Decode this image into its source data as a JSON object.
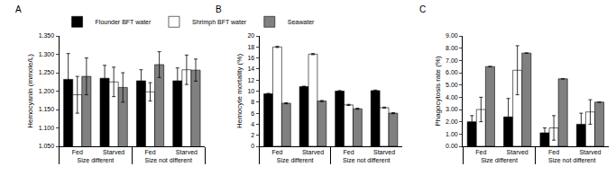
{
  "chart_data": [
    {
      "type": "bar",
      "title": "A",
      "y_label": "Hemocyanin (mmole/L)",
      "categories": [
        "Fed",
        "Starved",
        "Fed",
        "Starved"
      ],
      "category_groups": [
        "Size different",
        "Size different",
        "Size not different",
        "Size not different"
      ],
      "series": [
        {
          "name": "Flounder BFT water",
          "color": "#000000",
          "values": [
            1.232,
            1.235,
            1.228,
            1.228
          ],
          "errors": [
            0.07,
            0.035,
            0.03,
            0.035
          ]
        },
        {
          "name": "Shrimph BFT water",
          "color": "#ffffff",
          "values": [
            1.19,
            1.225,
            1.198,
            1.258
          ],
          "errors": [
            0.05,
            0.04,
            0.025,
            0.04
          ]
        },
        {
          "name": "Seawater",
          "color": "#808080",
          "values": [
            1.24,
            1.21,
            1.272,
            1.257
          ],
          "errors": [
            0.05,
            0.04,
            0.035,
            0.03
          ]
        }
      ],
      "ylim": [
        1.05,
        1.35
      ],
      "yticks": [
        {
          "value": 1.05,
          "label": "1.050"
        },
        {
          "value": 1.1,
          "label": "1.100"
        },
        {
          "value": 1.15,
          "label": "1.150"
        },
        {
          "value": 1.2,
          "label": "1.200"
        },
        {
          "value": 1.25,
          "label": "1.250"
        },
        {
          "value": 1.3,
          "label": "1.300"
        },
        {
          "value": 1.35,
          "label": "1.350"
        }
      ],
      "legend": "top left"
    },
    {
      "type": "bar",
      "title": "B",
      "y_label": "Hemocyte mortality (%)",
      "categories": [
        "Fed",
        "Starved",
        "Fed",
        "Starved"
      ],
      "category_groups": [
        "Size different",
        "Size different",
        "Size not different",
        "Size not different"
      ],
      "series": [
        {
          "name": "Flounder BFT water",
          "color": "#000000",
          "values": [
            9.5,
            10.8,
            10.0,
            10.1
          ],
          "errors": [
            0.1,
            0.1,
            0.1,
            0.1
          ]
        },
        {
          "name": "Shrimph BFT water",
          "color": "#ffffff",
          "values": [
            18.0,
            16.7,
            7.5,
            7.0
          ],
          "errors": [
            0.1,
            0.1,
            0.1,
            0.1
          ]
        },
        {
          "name": "Seawater",
          "color": "#808080",
          "values": [
            7.8,
            8.2,
            6.8,
            6.0
          ],
          "errors": [
            0.1,
            0.1,
            0.1,
            0.1
          ]
        }
      ],
      "ylim": [
        0,
        20
      ],
      "yticks": [
        0,
        2,
        4,
        6,
        8,
        10,
        12,
        14,
        16,
        18,
        20
      ]
    },
    {
      "type": "bar",
      "title": "C",
      "y_label": "Phagocytosis rate (%)",
      "categories": [
        "Fed",
        "Starved",
        "Fed",
        "Starved"
      ],
      "category_groups": [
        "Size different",
        "Size different",
        "Size not different",
        "Size not different"
      ],
      "series": [
        {
          "name": "Flounder BFT water",
          "color": "#000000",
          "values": [
            2.0,
            2.4,
            1.1,
            1.8
          ],
          "errors": [
            0.5,
            1.5,
            0.4,
            0.9
          ]
        },
        {
          "name": "Shrimph BFT water",
          "color": "#ffffff",
          "values": [
            3.0,
            6.2,
            1.5,
            2.8
          ],
          "errors": [
            1.0,
            2.0,
            1.0,
            1.0
          ]
        },
        {
          "name": "Seawater",
          "color": "#808080",
          "values": [
            6.5,
            7.6,
            5.5,
            3.6
          ],
          "errors": [
            0,
            0,
            0,
            0
          ]
        }
      ],
      "ylim": [
        0,
        9
      ],
      "yticks": [
        {
          "value": 0,
          "label": "0.00"
        },
        {
          "value": 1,
          "label": "1.00"
        },
        {
          "value": 2,
          "label": "2.00"
        },
        {
          "value": 3,
          "label": "3.00"
        },
        {
          "value": 4,
          "label": "4.00"
        },
        {
          "value": 5,
          "label": "5.00"
        },
        {
          "value": 6,
          "label": "6.00"
        },
        {
          "value": 7,
          "label": "7.00"
        },
        {
          "value": 8,
          "label": "8.00"
        },
        {
          "value": 9,
          "label": "9.00"
        }
      ]
    }
  ]
}
